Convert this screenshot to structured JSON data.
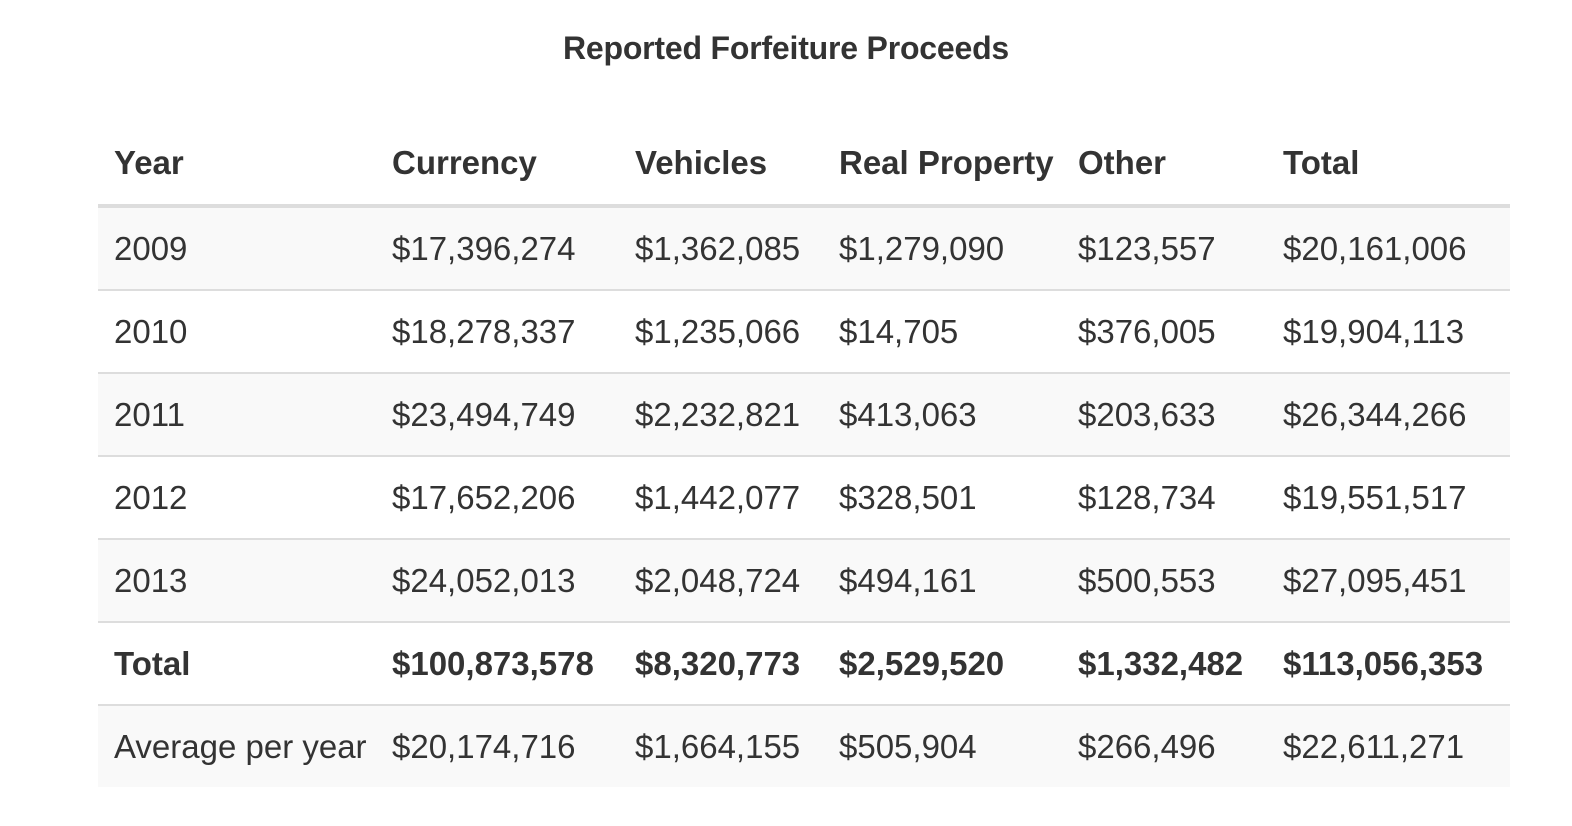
{
  "title": "Reported Forfeiture Proceeds",
  "columns": [
    "Year",
    "Currency",
    "Vehicles",
    "Real Property",
    "Other",
    "Total"
  ],
  "rows": [
    {
      "year": "2009",
      "currency": "$17,396,274",
      "vehicles": "$1,362,085",
      "real_property": "$1,279,090",
      "other": "$123,557",
      "total": "$20,161,006"
    },
    {
      "year": "2010",
      "currency": "$18,278,337",
      "vehicles": "$1,235,066",
      "real_property": "$14,705",
      "other": "$376,005",
      "total": "$19,904,113"
    },
    {
      "year": "2011",
      "currency": "$23,494,749",
      "vehicles": "$2,232,821",
      "real_property": "$413,063",
      "other": "$203,633",
      "total": "$26,344,266"
    },
    {
      "year": "2012",
      "currency": "$17,652,206",
      "vehicles": "$1,442,077",
      "real_property": "$328,501",
      "other": "$128,734",
      "total": "$19,551,517"
    },
    {
      "year": "2013",
      "currency": "$24,052,013",
      "vehicles": "$2,048,724",
      "real_property": "$494,161",
      "other": "$500,553",
      "total": "$27,095,451"
    }
  ],
  "total_row": {
    "label": "Total",
    "currency": "$100,873,578",
    "vehicles": "$8,320,773",
    "real_property": "$2,529,520",
    "other": "$1,332,482",
    "total": "$113,056,353"
  },
  "average_row": {
    "label": "Average per year",
    "currency": "$20,174,716",
    "vehicles": "$1,664,155",
    "real_property": "$505,904",
    "other": "$266,496",
    "total": "$22,611,271"
  },
  "colors": {
    "text": "#333333",
    "stripe": "#f9f9f9",
    "border": "#dddddd"
  }
}
